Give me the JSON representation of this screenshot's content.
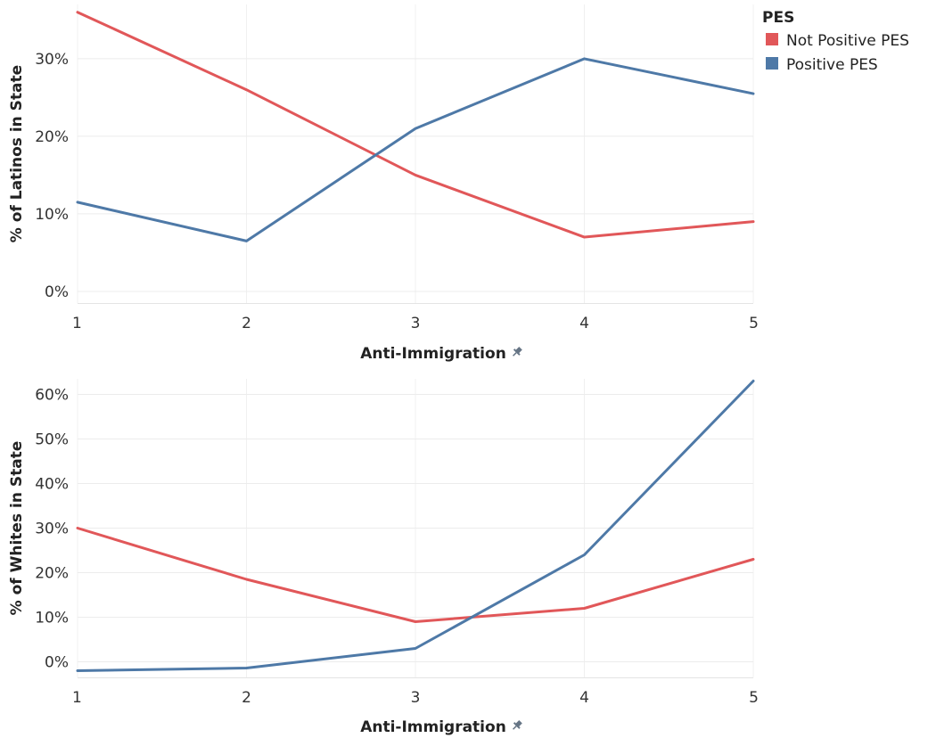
{
  "legend": {
    "title": "PES",
    "items": [
      {
        "label": "Not Positive PES",
        "color": "#e15759"
      },
      {
        "label": "Positive PES",
        "color": "#4e79a7"
      }
    ]
  },
  "pin_icon": "pin-icon",
  "chart_data": [
    {
      "type": "line",
      "title": "",
      "xlabel": "Anti-Immigration",
      "ylabel": "% of Latinos in State",
      "x": [
        1,
        2,
        3,
        4,
        5
      ],
      "xticks": [
        "1",
        "2",
        "3",
        "4",
        "5"
      ],
      "ylim": [
        -0.015,
        0.37
      ],
      "yticks": [
        0,
        0.1,
        0.2,
        0.3
      ],
      "ytick_labels": [
        "0%",
        "10%",
        "20%",
        "30%"
      ],
      "grid": true,
      "series": [
        {
          "name": "Not Positive PES",
          "color": "#e15759",
          "values": [
            0.36,
            0.26,
            0.15,
            0.07,
            0.09
          ]
        },
        {
          "name": "Positive PES",
          "color": "#4e79a7",
          "values": [
            0.115,
            0.065,
            0.21,
            0.3,
            0.255
          ]
        }
      ]
    },
    {
      "type": "line",
      "title": "",
      "xlabel": "Anti-Immigration",
      "ylabel": "% of Whites in State",
      "x": [
        1,
        2,
        3,
        4,
        5
      ],
      "xticks": [
        "1",
        "2",
        "3",
        "4",
        "5"
      ],
      "ylim": [
        -0.035,
        0.635
      ],
      "yticks": [
        0,
        0.1,
        0.2,
        0.3,
        0.4,
        0.5,
        0.6
      ],
      "ytick_labels": [
        "0%",
        "10%",
        "20%",
        "30%",
        "40%",
        "50%",
        "60%"
      ],
      "grid": true,
      "series": [
        {
          "name": "Not Positive PES",
          "color": "#e15759",
          "values": [
            0.3,
            0.185,
            0.09,
            0.12,
            0.23
          ]
        },
        {
          "name": "Positive PES",
          "color": "#4e79a7",
          "values": [
            -0.02,
            -0.014,
            0.03,
            0.24,
            0.63
          ]
        }
      ]
    }
  ]
}
